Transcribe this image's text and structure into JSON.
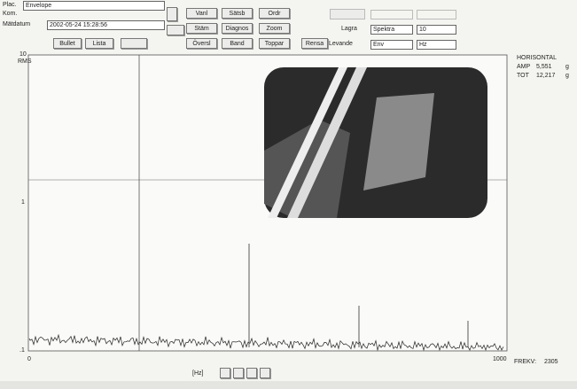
{
  "header": {
    "plac_label": "Plac.",
    "plac_value": "Envelope",
    "kom_label": "Kom.",
    "date_label": "Mätdatum",
    "date_value": "2002-05-24 15:28:56"
  },
  "buttons": [
    "Bullet",
    "Lista",
    "Vanl",
    "Sätsb",
    "Ordr",
    "Stäm",
    "Diagnos",
    "Zoom",
    "Översl",
    "Band",
    "Toppar",
    "Rensa"
  ],
  "controls": {
    "lagra_label": "Lagra",
    "levande_label": "Levande",
    "lagra_value": "Spektra",
    "levande_value": "Env",
    "top_value": "10",
    "unit_value": "Hz"
  },
  "plot": {
    "y_top": "10",
    "y_unit": "RMS",
    "y_mid": "1",
    "y_bottom": ".1",
    "x_start": "0",
    "x_end": "1000",
    "x_unit": "[Hz]"
  },
  "readout": {
    "title": "HORISONTAL",
    "rows": [
      [
        "AMP",
        "5,551",
        "g"
      ],
      [
        "TOT",
        "12,217",
        "g"
      ]
    ]
  },
  "footer": {
    "freq_label": "FREKV:",
    "freq_value": "2305"
  }
}
